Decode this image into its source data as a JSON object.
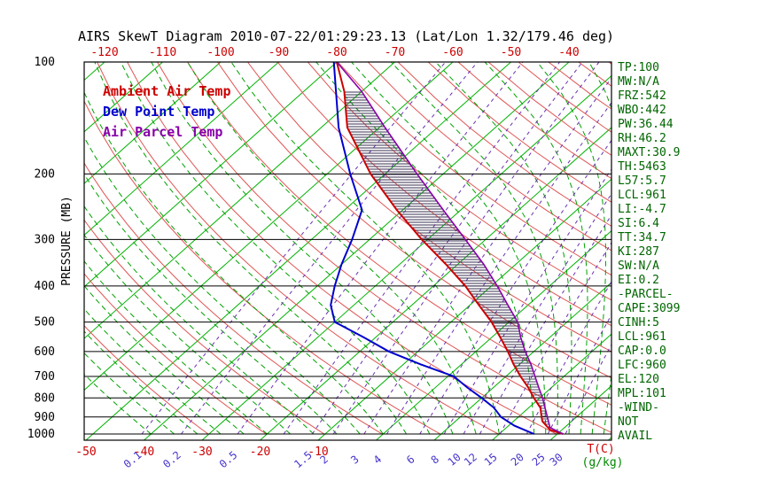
{
  "title": "AIRS SkewT Diagram 2010-07-22/01:29:23.13 (Lat/Lon 1.32/179.46 deg)",
  "legend": {
    "ambient": "Ambient Air Temp",
    "dew": "Dew Point Temp",
    "parcel": "Air Parcel Temp"
  },
  "axes": {
    "pressure_label": "PRESSURE (MB)",
    "pressure_ticks": [
      100,
      200,
      300,
      400,
      500,
      600,
      700,
      800,
      900,
      1000
    ],
    "top_temp_ticks": [
      -120,
      -110,
      -100,
      -90,
      -80,
      -70,
      -60,
      -50,
      -40
    ],
    "bottom_temp_ticks": [
      -50,
      -40,
      -30,
      -20,
      -10
    ],
    "temp_unit_label": "T(C)",
    "mixing_unit_label": "(g/kg)",
    "mixing_ratio_tick_labels": [
      0.1,
      0.2,
      0.5,
      1.5,
      2,
      3,
      4,
      6,
      8,
      10,
      12,
      15,
      20,
      25,
      30
    ]
  },
  "stats": [
    "TP:100",
    "MW:N/A",
    "FRZ:542",
    "WBO:442",
    "PW:36.44",
    "RH:46.2",
    "MAXT:30.9",
    "TH:5463",
    "L57:5.7",
    "LCL:961",
    "LI:-4.7",
    "SI:6.4",
    "TT:34.7",
    "KI:287",
    "SW:N/A",
    "EI:0.2",
    "-PARCEL-",
    "CAPE:3099",
    "CINH:5",
    "LCL:961",
    "CAP:0.0",
    "LFC:960",
    "EL:120",
    "MPL:101",
    "-WIND-",
    "NOT",
    "AVAIL"
  ],
  "colors": {
    "ambient": "#cc0000",
    "dew": "#0000cc",
    "parcel": "#8800aa",
    "isotherm": "#00b300",
    "dry_adiabat": "#e05555",
    "moist_adiabat": "#00a000",
    "mixing": "#6a30b0",
    "isobar": "#000000",
    "border": "#000000",
    "stats_text": "#006600",
    "axis_text": "#000000",
    "temp_ticks": "#cc0000",
    "mixing_labels": "#4433cc",
    "units_g_kg": "#008800",
    "hatch": "#383050"
  },
  "chart_data": {
    "type": "line",
    "title": "AIRS SkewT Diagram 2010-07-22/01:29:23.13 (Lat/Lon 1.32/179.46 deg)",
    "xlabel": "Temperature (C), skewed isotherms",
    "ylabel": "Pressure (MB), logarithmic 100-1000",
    "x_range_at_surface": [
      -50,
      40
    ],
    "pressure_range": [
      100,
      1000
    ],
    "series": [
      {
        "name": "Ambient Air Temp",
        "color_key": "ambient",
        "points_pressure_temp": [
          [
            1000,
            31
          ],
          [
            975,
            28
          ],
          [
            950,
            26.5
          ],
          [
            925,
            25
          ],
          [
            900,
            24
          ],
          [
            850,
            22
          ],
          [
            800,
            19
          ],
          [
            750,
            16
          ],
          [
            700,
            12.5
          ],
          [
            650,
            9
          ],
          [
            600,
            5.5
          ],
          [
            550,
            1.5
          ],
          [
            500,
            -3
          ],
          [
            450,
            -8.5
          ],
          [
            400,
            -14.5
          ],
          [
            350,
            -22
          ],
          [
            300,
            -31
          ],
          [
            250,
            -41
          ],
          [
            200,
            -52.5
          ],
          [
            150,
            -65.5
          ],
          [
            120,
            -73
          ],
          [
            100,
            -80
          ]
        ]
      },
      {
        "name": "Dew Point Temp",
        "color_key": "dew",
        "points_pressure_temp": [
          [
            1000,
            26
          ],
          [
            950,
            21
          ],
          [
            900,
            17
          ],
          [
            850,
            14
          ],
          [
            800,
            10
          ],
          [
            750,
            5.5
          ],
          [
            700,
            1
          ],
          [
            650,
            -7
          ],
          [
            600,
            -15
          ],
          [
            550,
            -22
          ],
          [
            500,
            -30
          ],
          [
            450,
            -34
          ],
          [
            400,
            -37
          ],
          [
            350,
            -40
          ],
          [
            300,
            -43
          ],
          [
            250,
            -47
          ],
          [
            200,
            -56
          ],
          [
            150,
            -67
          ],
          [
            100,
            -80.5
          ]
        ]
      },
      {
        "name": "Air Parcel Temp",
        "color_key": "parcel",
        "points_pressure_temp": [
          [
            1000,
            31
          ],
          [
            961,
            27.5
          ],
          [
            900,
            25
          ],
          [
            850,
            22.8
          ],
          [
            800,
            20.5
          ],
          [
            750,
            17.8
          ],
          [
            700,
            15
          ],
          [
            650,
            12
          ],
          [
            600,
            8.5
          ],
          [
            550,
            5
          ],
          [
            500,
            1.5
          ],
          [
            450,
            -3.5
          ],
          [
            400,
            -9
          ],
          [
            350,
            -15.5
          ],
          [
            300,
            -23.5
          ],
          [
            250,
            -33
          ],
          [
            200,
            -44.5
          ],
          [
            150,
            -59
          ],
          [
            120,
            -70
          ],
          [
            100,
            -80
          ]
        ]
      }
    ],
    "background": {
      "isotherms_c": {
        "min": -120,
        "max": 40,
        "step": 10
      },
      "dry_adiabats_theta_k": {
        "min": 243,
        "max": 463,
        "step": 10
      },
      "moist_adiabats_surface_c": {
        "min": -40,
        "max": 40,
        "coarse_step": 4,
        "fine_from": 26,
        "fine_step": 2
      },
      "mixing_ratio_lines_g_kg": [
        0.1,
        0.2,
        0.5,
        1,
        1.5,
        2,
        3,
        4,
        6,
        8,
        10,
        12,
        15,
        20,
        25,
        30
      ],
      "hatch_between": [
        "Air Parcel Temp",
        "Ambient Air Temp"
      ],
      "hatch_pressure_range": [
        960,
        120
      ]
    },
    "legend_position": "upper-left inside plot",
    "grid": "isobars horizontal at each 100 MB"
  }
}
